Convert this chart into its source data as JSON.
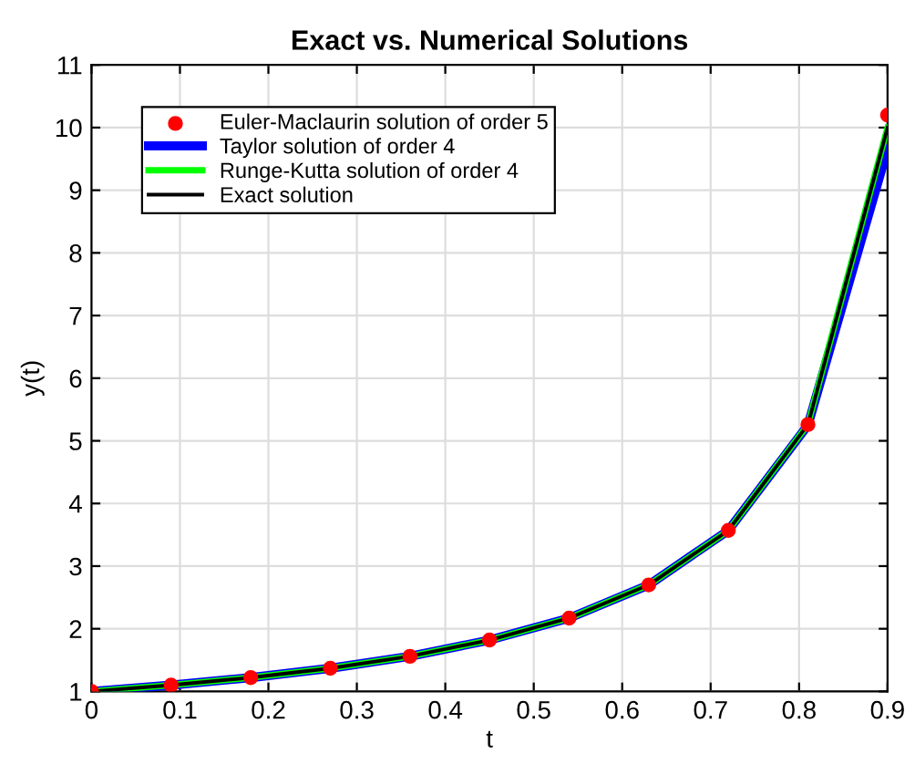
{
  "chart_data": {
    "type": "line",
    "title": "Exact vs. Numerical Solutions",
    "xlabel": "t",
    "ylabel": "y(t)",
    "x": [
      0,
      0.09,
      0.18,
      0.27,
      0.36,
      0.45,
      0.54,
      0.63,
      0.72,
      0.81,
      0.9
    ],
    "series": [
      {
        "name": "Euler-Maclaurin solution of order 5",
        "type": "scatter",
        "color": "#ff0000",
        "marker": "circle",
        "values": [
          1.0,
          1.1,
          1.22,
          1.37,
          1.56,
          1.82,
          2.17,
          2.7,
          3.57,
          5.26,
          10.2
        ]
      },
      {
        "name": "Taylor solution of order 4",
        "type": "line",
        "color": "#0000ff",
        "values": [
          1.0,
          1.1,
          1.22,
          1.37,
          1.56,
          1.82,
          2.17,
          2.7,
          3.57,
          5.25,
          9.66
        ]
      },
      {
        "name": "Runge-Kutta solution of order 4",
        "type": "line",
        "color": "#00ff00",
        "values": [
          1.0,
          1.1,
          1.22,
          1.37,
          1.56,
          1.82,
          2.17,
          2.7,
          3.57,
          5.26,
          10.0
        ]
      },
      {
        "name": "Exact solution",
        "type": "line",
        "color": "#000000",
        "values": [
          1.0,
          1.1,
          1.22,
          1.37,
          1.56,
          1.82,
          2.17,
          2.7,
          3.57,
          5.26,
          10.0
        ]
      }
    ],
    "xlim": [
      0,
      0.9
    ],
    "ylim": [
      1,
      11
    ],
    "xticks": [
      0,
      0.1,
      0.2,
      0.3,
      0.4,
      0.5,
      0.6,
      0.7,
      0.8,
      0.9
    ],
    "yticks": [
      1,
      2,
      3,
      4,
      5,
      6,
      7,
      8,
      9,
      10,
      11
    ],
    "grid": true,
    "legend": "top left",
    "line_style": "solid"
  }
}
